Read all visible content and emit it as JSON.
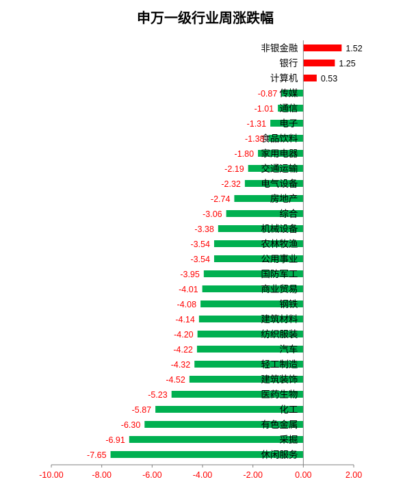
{
  "chart_data": {
    "type": "bar",
    "orientation": "horizontal",
    "title": "申万一级行业周涨跌幅",
    "xlabel": "",
    "ylabel": "",
    "xlim": [
      -10,
      2
    ],
    "xticks": [
      "-10.00",
      "-8.00",
      "-6.00",
      "-4.00",
      "-2.00",
      "0.00",
      "2.00"
    ],
    "tick_values": [
      -10,
      -8,
      -6,
      -4,
      -2,
      0,
      2
    ],
    "grid": false,
    "legend": "none",
    "positive_color": "#ff0000",
    "negative_color": "#00b050",
    "value_label_color_negative": "#ff0000",
    "categories": [
      "非银金融",
      "银行",
      "计算机",
      "传媒",
      "通信",
      "电子",
      "食品饮料",
      "家用电器",
      "交通运输",
      "电气设备",
      "房地产",
      "综合",
      "机械设备",
      "农林牧渔",
      "公用事业",
      "国防军工",
      "商业贸易",
      "钢铁",
      "建筑材料",
      "纺织服装",
      "汽车",
      "轻工制造",
      "建筑装饰",
      "医药生物",
      "化工",
      "有色金属",
      "采掘",
      "休闲服务"
    ],
    "values": [
      1.52,
      1.25,
      0.53,
      -0.87,
      -1.01,
      -1.31,
      -1.38,
      -1.8,
      -2.19,
      -2.32,
      -2.74,
      -3.06,
      -3.38,
      -3.54,
      -3.54,
      -3.95,
      -4.01,
      -4.08,
      -4.14,
      -4.2,
      -4.22,
      -4.32,
      -4.52,
      -5.23,
      -5.87,
      -6.3,
      -6.91,
      -7.65
    ],
    "value_labels": [
      "1.52",
      "1.25",
      "0.53",
      "-0.87",
      "-1.01",
      "-1.31",
      "-1.38",
      "-1.80",
      "-2.19",
      "-2.32",
      "-2.74",
      "-3.06",
      "-3.38",
      "-3.54",
      "-3.54",
      "-3.95",
      "-4.01",
      "-4.08",
      "-4.14",
      "-4.20",
      "-4.22",
      "-4.32",
      "-4.52",
      "-5.23",
      "-5.87",
      "-6.30",
      "-6.91",
      "-7.65"
    ]
  }
}
